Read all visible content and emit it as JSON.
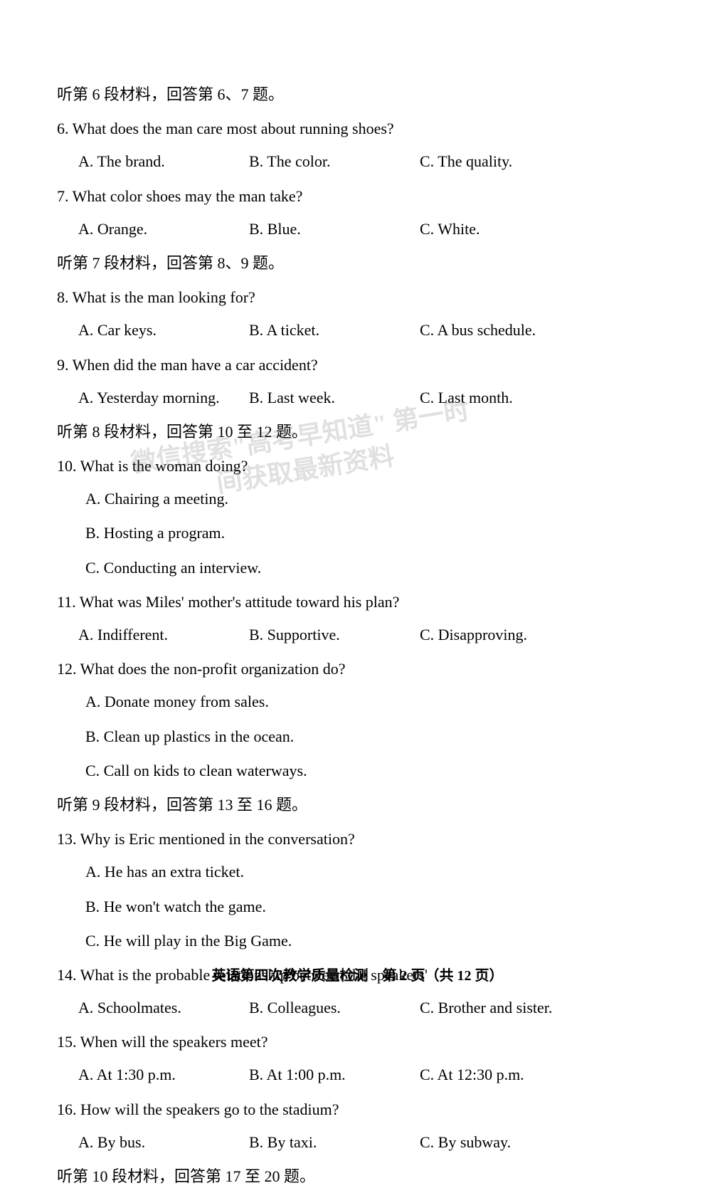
{
  "sections": {
    "s6": "听第 6 段材料，回答第 6、7 题。",
    "s7": "听第 7 段材料，回答第 8、9 题。",
    "s8": "听第 8 段材料，回答第 10 至 12 题。",
    "s9": "听第 9 段材料，回答第 13 至 16 题。",
    "s10": "听第 10 段材料，回答第 17 至 20 题。"
  },
  "q6": {
    "text": "6. What does the man care most about running shoes?",
    "a": "A. The brand.",
    "b": "B. The color.",
    "c": "C. The quality."
  },
  "q7": {
    "text": "7. What color shoes may the man take?",
    "a": "A. Orange.",
    "b": "B. Blue.",
    "c": "C. White."
  },
  "q8": {
    "text": "8. What is the man looking for?",
    "a": "A. Car keys.",
    "b": "B. A ticket.",
    "c": "C. A bus schedule."
  },
  "q9": {
    "text": "9. When did the man have a car accident?",
    "a": "A. Yesterday morning.",
    "b": "B. Last week.",
    "c": "C. Last month."
  },
  "q10": {
    "text": "10. What is the woman doing?",
    "a": "A. Chairing a meeting.",
    "b": "B. Hosting a program.",
    "c": "C. Conducting an interview."
  },
  "q11": {
    "text": "11. What was Miles' mother's attitude toward his plan?",
    "a": "A. Indifferent.",
    "b": "B. Supportive.",
    "c": "C. Disapproving."
  },
  "q12": {
    "text": "12. What does the non-profit organization do?",
    "a": "A. Donate money from sales.",
    "b": "B. Clean up plastics in the ocean.",
    "c": "C. Call on kids to clean waterways."
  },
  "q13": {
    "text": "13. Why is Eric mentioned in the conversation?",
    "a": "A. He has an extra ticket.",
    "b": "B. He won't watch the game.",
    "c": "C. He will play in the Big Game."
  },
  "q14": {
    "text": "14. What is the probable relationship between the speakers'",
    "a": "A. Schoolmates.",
    "b": "B. Colleagues.",
    "c": "C. Brother and sister."
  },
  "q15": {
    "text": "15. When will the speakers meet?",
    "a": "A. At 1:30 p.m.",
    "b": "B. At 1:00 p.m.",
    "c": "C. At 12:30 p.m."
  },
  "q16": {
    "text": "16. How will the speakers go to the stadium?",
    "a": "A. By bus.",
    "b": "B. By taxi.",
    "c": "C. By subway."
  },
  "watermark": "微信搜索\"高考早知道\"\n第一时间获取最新资料",
  "footer": "英语第四次教学质量检测　第 2 页（共 12 页）",
  "colors": {
    "text": "#000000",
    "background": "#ffffff",
    "watermark": "#444444"
  },
  "typography": {
    "body_fontsize": 22,
    "footer_fontsize": 20,
    "line_height": 2.1
  }
}
